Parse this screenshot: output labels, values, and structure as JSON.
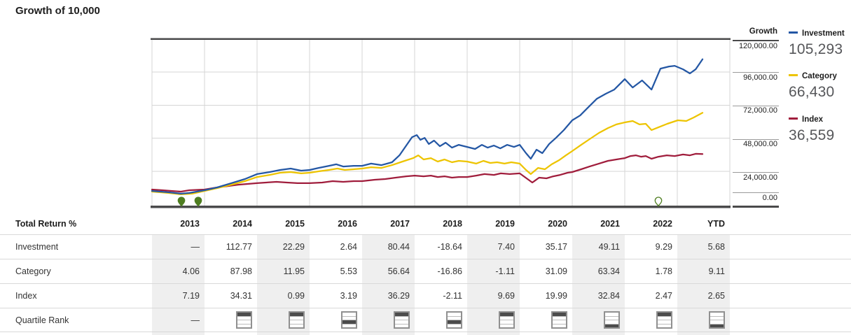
{
  "title": "Growth of 10,000",
  "chart": {
    "growth_axis": {
      "header": "Growth",
      "ticks": [
        "120,000.00",
        "96,000.00",
        "72,000.00",
        "48,000.00",
        "24,000.00",
        "0.00"
      ]
    },
    "legend": [
      {
        "name": "Investment",
        "value": "105,293",
        "color": "#2457a4"
      },
      {
        "name": "Category",
        "value": "66,430",
        "color": "#edc400"
      },
      {
        "name": "Index",
        "value": "36,559",
        "color": "#a01d3c"
      }
    ]
  },
  "chart_data": {
    "type": "line",
    "title": "Growth of 10,000",
    "ylabel": "Growth",
    "ylim": [
      0,
      120000
    ],
    "y_ticks": [
      0,
      24000,
      48000,
      72000,
      96000,
      120000
    ],
    "x_range": [
      2013,
      2023.5
    ],
    "grid": true,
    "legend_position": "right",
    "marker_color": "#4e7d20",
    "markers": [
      {
        "x": 2013.56,
        "style": "filled"
      },
      {
        "x": 2013.88,
        "style": "filled"
      },
      {
        "x": 2022.64,
        "style": "hollow"
      }
    ],
    "series": [
      {
        "name": "Index",
        "color": "#a01d3c",
        "final_value": 36559,
        "points": [
          [
            2013.0,
            10800
          ],
          [
            2013.2,
            10300
          ],
          [
            2013.37,
            9800
          ],
          [
            2013.55,
            9300
          ],
          [
            2013.71,
            10300
          ],
          [
            2014.0,
            10800
          ],
          [
            2014.24,
            12300
          ],
          [
            2014.44,
            13300
          ],
          [
            2014.64,
            14300
          ],
          [
            2014.84,
            14900
          ],
          [
            2015.0,
            15400
          ],
          [
            2015.17,
            15900
          ],
          [
            2015.37,
            16400
          ],
          [
            2015.57,
            15900
          ],
          [
            2015.77,
            15400
          ],
          [
            2016.0,
            15400
          ],
          [
            2016.24,
            15900
          ],
          [
            2016.44,
            16900
          ],
          [
            2016.64,
            16400
          ],
          [
            2016.84,
            16900
          ],
          [
            2017.0,
            16900
          ],
          [
            2017.24,
            17900
          ],
          [
            2017.44,
            18400
          ],
          [
            2017.64,
            19400
          ],
          [
            2017.84,
            20400
          ],
          [
            2018.0,
            20900
          ],
          [
            2018.17,
            20400
          ],
          [
            2018.31,
            20900
          ],
          [
            2018.44,
            19900
          ],
          [
            2018.57,
            20400
          ],
          [
            2018.71,
            19400
          ],
          [
            2018.84,
            19900
          ],
          [
            2019.0,
            19900
          ],
          [
            2019.17,
            20900
          ],
          [
            2019.33,
            22000
          ],
          [
            2019.51,
            21400
          ],
          [
            2019.64,
            22500
          ],
          [
            2019.81,
            22000
          ],
          [
            2020.0,
            22500
          ],
          [
            2020.13,
            18900
          ],
          [
            2020.24,
            15900
          ],
          [
            2020.37,
            19400
          ],
          [
            2020.51,
            18900
          ],
          [
            2020.64,
            20400
          ],
          [
            2020.77,
            21400
          ],
          [
            2020.91,
            23000
          ],
          [
            2021.0,
            23500
          ],
          [
            2021.17,
            25500
          ],
          [
            2021.33,
            27500
          ],
          [
            2021.51,
            29600
          ],
          [
            2021.68,
            31600
          ],
          [
            2021.84,
            32600
          ],
          [
            2022.0,
            33600
          ],
          [
            2022.11,
            35100
          ],
          [
            2022.21,
            35600
          ],
          [
            2022.31,
            34600
          ],
          [
            2022.4,
            35100
          ],
          [
            2022.51,
            33100
          ],
          [
            2022.64,
            34600
          ],
          [
            2022.8,
            35600
          ],
          [
            2022.95,
            35100
          ],
          [
            2023.11,
            36200
          ],
          [
            2023.24,
            35600
          ],
          [
            2023.35,
            36700
          ],
          [
            2023.48,
            36559
          ]
        ]
      },
      {
        "name": "Category",
        "color": "#edc400",
        "final_value": 66430,
        "points": [
          [
            2013.0,
            9300
          ],
          [
            2013.31,
            8300
          ],
          [
            2013.55,
            7300
          ],
          [
            2013.77,
            7800
          ],
          [
            2014.0,
            9800
          ],
          [
            2014.24,
            11800
          ],
          [
            2014.51,
            14300
          ],
          [
            2014.77,
            16900
          ],
          [
            2015.0,
            19900
          ],
          [
            2015.24,
            21400
          ],
          [
            2015.44,
            23000
          ],
          [
            2015.64,
            23500
          ],
          [
            2015.84,
            22500
          ],
          [
            2016.0,
            23000
          ],
          [
            2016.17,
            24000
          ],
          [
            2016.37,
            25000
          ],
          [
            2016.53,
            26000
          ],
          [
            2016.67,
            25000
          ],
          [
            2016.84,
            25500
          ],
          [
            2017.0,
            26000
          ],
          [
            2017.17,
            27000
          ],
          [
            2017.37,
            26500
          ],
          [
            2017.57,
            28500
          ],
          [
            2017.77,
            31100
          ],
          [
            2017.97,
            33600
          ],
          [
            2018.07,
            35600
          ],
          [
            2018.17,
            32600
          ],
          [
            2018.31,
            33600
          ],
          [
            2018.44,
            31100
          ],
          [
            2018.57,
            32600
          ],
          [
            2018.71,
            30600
          ],
          [
            2018.84,
            31600
          ],
          [
            2019.0,
            31100
          ],
          [
            2019.17,
            29600
          ],
          [
            2019.31,
            31600
          ],
          [
            2019.44,
            30100
          ],
          [
            2019.57,
            30600
          ],
          [
            2019.71,
            29600
          ],
          [
            2019.84,
            30600
          ],
          [
            2020.0,
            29600
          ],
          [
            2020.12,
            25000
          ],
          [
            2020.21,
            22000
          ],
          [
            2020.35,
            26500
          ],
          [
            2020.48,
            25500
          ],
          [
            2020.61,
            29100
          ],
          [
            2020.75,
            32100
          ],
          [
            2020.88,
            35600
          ],
          [
            2021.0,
            38700
          ],
          [
            2021.17,
            43200
          ],
          [
            2021.33,
            47300
          ],
          [
            2021.51,
            51900
          ],
          [
            2021.68,
            55400
          ],
          [
            2021.84,
            58000
          ],
          [
            2022.0,
            59500
          ],
          [
            2022.15,
            60500
          ],
          [
            2022.28,
            58000
          ],
          [
            2022.4,
            58500
          ],
          [
            2022.51,
            53900
          ],
          [
            2022.64,
            55900
          ],
          [
            2022.81,
            58500
          ],
          [
            2023.01,
            61000
          ],
          [
            2023.17,
            60500
          ],
          [
            2023.31,
            63000
          ],
          [
            2023.48,
            66430
          ]
        ]
      },
      {
        "name": "Investment",
        "color": "#2457a4",
        "final_value": 105293,
        "points": [
          [
            2013.0,
            9800
          ],
          [
            2013.31,
            8800
          ],
          [
            2013.55,
            7800
          ],
          [
            2013.71,
            8300
          ],
          [
            2014.0,
            10300
          ],
          [
            2014.24,
            12300
          ],
          [
            2014.51,
            15400
          ],
          [
            2014.77,
            18400
          ],
          [
            2015.0,
            22000
          ],
          [
            2015.24,
            23500
          ],
          [
            2015.44,
            25000
          ],
          [
            2015.64,
            26000
          ],
          [
            2015.84,
            24500
          ],
          [
            2016.0,
            25000
          ],
          [
            2016.17,
            26500
          ],
          [
            2016.37,
            28000
          ],
          [
            2016.51,
            29100
          ],
          [
            2016.64,
            27500
          ],
          [
            2016.84,
            28000
          ],
          [
            2017.0,
            28000
          ],
          [
            2017.17,
            29600
          ],
          [
            2017.37,
            28500
          ],
          [
            2017.57,
            30600
          ],
          [
            2017.71,
            35600
          ],
          [
            2017.84,
            42700
          ],
          [
            2017.95,
            48800
          ],
          [
            2018.04,
            50300
          ],
          [
            2018.11,
            46800
          ],
          [
            2018.19,
            48300
          ],
          [
            2018.27,
            43800
          ],
          [
            2018.37,
            46300
          ],
          [
            2018.48,
            42200
          ],
          [
            2018.59,
            44800
          ],
          [
            2018.71,
            41200
          ],
          [
            2018.84,
            43200
          ],
          [
            2019.0,
            41700
          ],
          [
            2019.15,
            40200
          ],
          [
            2019.28,
            43200
          ],
          [
            2019.39,
            41200
          ],
          [
            2019.51,
            42700
          ],
          [
            2019.63,
            40700
          ],
          [
            2019.76,
            43200
          ],
          [
            2019.89,
            41700
          ],
          [
            2020.0,
            43200
          ],
          [
            2020.12,
            37200
          ],
          [
            2020.21,
            33100
          ],
          [
            2020.32,
            39700
          ],
          [
            2020.43,
            37200
          ],
          [
            2020.56,
            43800
          ],
          [
            2020.69,
            48300
          ],
          [
            2020.84,
            53900
          ],
          [
            2021.0,
            61000
          ],
          [
            2021.15,
            64500
          ],
          [
            2021.31,
            70600
          ],
          [
            2021.47,
            76700
          ],
          [
            2021.64,
            80300
          ],
          [
            2021.8,
            83300
          ],
          [
            2022.0,
            90900
          ],
          [
            2022.15,
            84800
          ],
          [
            2022.33,
            89900
          ],
          [
            2022.51,
            83300
          ],
          [
            2022.68,
            98500
          ],
          [
            2022.84,
            100000
          ],
          [
            2022.95,
            100500
          ],
          [
            2023.11,
            98000
          ],
          [
            2023.24,
            95000
          ],
          [
            2023.35,
            98000
          ],
          [
            2023.48,
            105293
          ]
        ]
      }
    ]
  },
  "table": {
    "header": {
      "label": "Total Return %",
      "columns": [
        "2013",
        "2014",
        "2015",
        "2016",
        "2017",
        "2018",
        "2019",
        "2020",
        "2021",
        "2022",
        "YTD"
      ]
    },
    "rows": [
      {
        "label": "Investment",
        "values": [
          "—",
          "112.77",
          "22.29",
          "2.64",
          "80.44",
          "-18.64",
          "7.40",
          "35.17",
          "49.11",
          "9.29",
          "5.68"
        ]
      },
      {
        "label": "Category",
        "values": [
          "4.06",
          "87.98",
          "11.95",
          "5.53",
          "56.64",
          "-16.86",
          "-1.11",
          "31.09",
          "63.34",
          "1.78",
          "9.11"
        ]
      },
      {
        "label": "Index",
        "values": [
          "7.19",
          "34.31",
          "0.99",
          "3.19",
          "36.29",
          "-2.11",
          "9.69",
          "19.99",
          "32.84",
          "2.47",
          "2.65"
        ]
      }
    ],
    "quartile_row": {
      "label": "Quartile Rank",
      "values": [
        null,
        1,
        1,
        3,
        1,
        3,
        1,
        1,
        4,
        1,
        4
      ]
    }
  }
}
